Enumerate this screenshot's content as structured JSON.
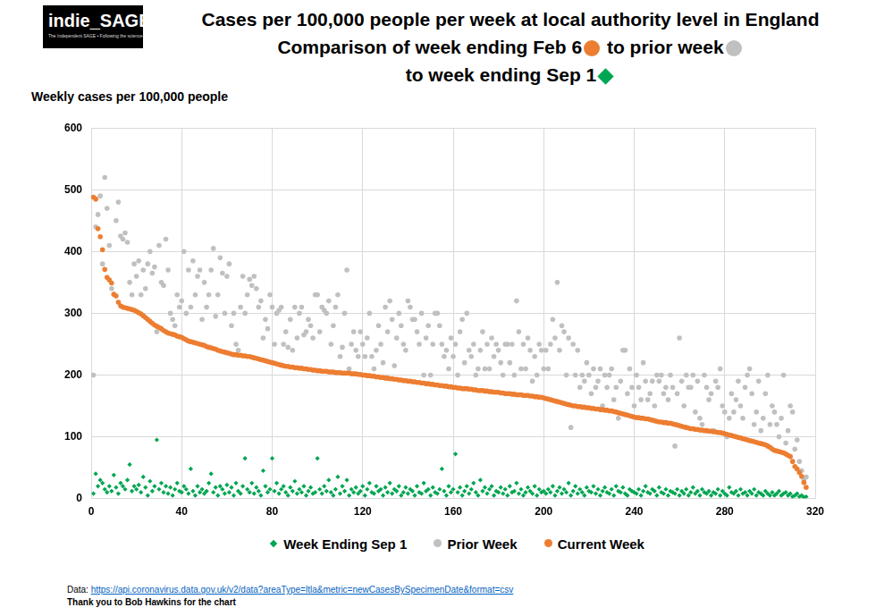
{
  "chart_data": {
    "type": "scatter",
    "title": "Cases per 100,000 people per week at local authority level in England",
    "subtitle": [
      "Comparison of week ending Feb 6",
      "to prior week",
      "to week ending Sep 1"
    ],
    "y_label": "Weekly cases per 100,000 people",
    "logo": {
      "text": "indie_SAGE",
      "tagline": "The Independent SAGE • Following the science"
    },
    "source": "Data:",
    "source_url": "https://api.coronavirus.data.gov.uk/v2/data?areaType=ltla&metric=newCasesBySpecimenDate&format=csv",
    "credit": "Thank you to Bob Hawkins for the chart",
    "xlim": [
      0,
      320
    ],
    "xticks": [
      0,
      40,
      80,
      120,
      160,
      200,
      240,
      280,
      320
    ],
    "ylim": [
      0,
      600
    ],
    "yticks": [
      0,
      100,
      200,
      300,
      400,
      500,
      600
    ],
    "grid": true,
    "legend": "bottom",
    "x": [
      1,
      2,
      3,
      4,
      5,
      6,
      7,
      8,
      9,
      10,
      11,
      12,
      13,
      14,
      15,
      16,
      17,
      18,
      19,
      20,
      21,
      22,
      23,
      24,
      25,
      26,
      27,
      28,
      29,
      30,
      31,
      32,
      33,
      34,
      35,
      36,
      37,
      38,
      39,
      40,
      41,
      42,
      43,
      44,
      45,
      46,
      47,
      48,
      49,
      50,
      51,
      52,
      53,
      54,
      55,
      56,
      57,
      58,
      59,
      60,
      61,
      62,
      63,
      64,
      65,
      66,
      67,
      68,
      69,
      70,
      71,
      72,
      73,
      74,
      75,
      76,
      77,
      78,
      79,
      80,
      81,
      82,
      83,
      84,
      85,
      86,
      87,
      88,
      89,
      90,
      91,
      92,
      93,
      94,
      95,
      96,
      97,
      98,
      99,
      100,
      101,
      102,
      103,
      104,
      105,
      106,
      107,
      108,
      109,
      110,
      111,
      112,
      113,
      114,
      115,
      116,
      117,
      118,
      119,
      120,
      121,
      122,
      123,
      124,
      125,
      126,
      127,
      128,
      129,
      130,
      131,
      132,
      133,
      134,
      135,
      136,
      137,
      138,
      139,
      140,
      141,
      142,
      143,
      144,
      145,
      146,
      147,
      148,
      149,
      150,
      151,
      152,
      153,
      154,
      155,
      156,
      157,
      158,
      159,
      160,
      161,
      162,
      163,
      164,
      165,
      166,
      167,
      168,
      169,
      170,
      171,
      172,
      173,
      174,
      175,
      176,
      177,
      178,
      179,
      180,
      181,
      182,
      183,
      184,
      185,
      186,
      187,
      188,
      189,
      190,
      191,
      192,
      193,
      194,
      195,
      196,
      197,
      198,
      199,
      200,
      201,
      202,
      203,
      204,
      205,
      206,
      207,
      208,
      209,
      210,
      211,
      212,
      213,
      214,
      215,
      216,
      217,
      218,
      219,
      220,
      221,
      222,
      223,
      224,
      225,
      226,
      227,
      228,
      229,
      230,
      231,
      232,
      233,
      234,
      235,
      236,
      237,
      238,
      239,
      240,
      241,
      242,
      243,
      244,
      245,
      246,
      247,
      248,
      249,
      250,
      251,
      252,
      253,
      254,
      255,
      256,
      257,
      258,
      259,
      260,
      261,
      262,
      263,
      264,
      265,
      266,
      267,
      268,
      269,
      270,
      271,
      272,
      273,
      274,
      275,
      276,
      277,
      278,
      279,
      280,
      281,
      282,
      283,
      284,
      285,
      286,
      287,
      288,
      289,
      290,
      291,
      292,
      293,
      294,
      295,
      296,
      297,
      298,
      299,
      300,
      301,
      302,
      303,
      304,
      305,
      306,
      307,
      308,
      309,
      310,
      311,
      312,
      313,
      314,
      315,
      316
    ],
    "series": [
      {
        "name": "Week Ending Sep 1",
        "color": "#00a651",
        "marker": "diamond",
        "values": [
          8,
          40,
          20,
          30,
          25,
          15,
          10,
          20,
          12,
          38,
          18,
          8,
          25,
          20,
          15,
          30,
          55,
          12,
          20,
          15,
          22,
          10,
          35,
          18,
          5,
          28,
          12,
          20,
          95,
          15,
          25,
          10,
          20,
          8,
          18,
          5,
          15,
          25,
          12,
          10,
          20,
          15,
          8,
          48,
          12,
          5,
          20,
          10,
          15,
          8,
          12,
          25,
          40,
          10,
          18,
          5,
          20,
          15,
          8,
          22,
          10,
          18,
          5,
          25,
          12,
          8,
          20,
          65,
          15,
          10,
          25,
          8,
          18,
          12,
          5,
          45,
          20,
          10,
          15,
          65,
          12,
          25,
          8,
          15,
          20,
          10,
          5,
          18,
          12,
          28,
          8,
          15,
          10,
          20,
          5,
          12,
          18,
          8,
          10,
          65,
          15,
          8,
          20,
          12,
          30,
          10,
          5,
          15,
          35,
          8,
          20,
          12,
          30,
          5,
          15,
          10,
          18,
          8,
          12,
          20,
          5,
          15,
          25,
          10,
          8,
          20,
          12,
          15,
          5,
          18,
          10,
          25,
          8,
          15,
          12,
          20,
          5,
          10,
          18,
          8,
          15,
          12,
          5,
          20,
          10,
          8,
          25,
          12,
          15,
          5,
          18,
          10,
          8,
          15,
          48,
          12,
          5,
          20,
          10,
          15,
          72,
          10,
          18,
          5,
          12,
          20,
          8,
          15,
          25,
          10,
          5,
          30,
          12,
          18,
          8,
          15,
          20,
          5,
          12,
          10,
          18,
          8,
          15,
          5,
          20,
          10,
          12,
          25,
          8,
          15,
          5,
          10,
          18,
          12,
          8,
          20,
          5,
          15,
          10,
          12,
          8,
          15,
          10,
          20,
          5,
          12,
          18,
          8,
          15,
          10,
          25,
          5,
          12,
          20,
          8,
          15,
          10,
          5,
          18,
          12,
          10,
          20,
          8,
          15,
          5,
          12,
          18,
          10,
          8,
          15,
          5,
          20,
          12,
          10,
          18,
          8,
          5,
          15,
          12,
          10,
          8,
          15,
          5,
          12,
          20,
          10,
          8,
          15,
          12,
          5,
          18,
          10,
          8,
          15,
          5,
          12,
          10,
          8,
          15,
          5,
          12,
          8,
          15,
          5,
          10,
          18,
          8,
          12,
          5,
          15,
          10,
          8,
          12,
          5,
          10,
          8,
          15,
          5,
          12,
          8,
          5,
          18,
          10,
          8,
          12,
          5,
          15,
          8,
          10,
          5,
          12,
          8,
          15,
          5,
          10,
          8,
          5,
          12,
          8,
          5,
          10,
          5,
          8,
          12,
          5,
          8,
          10,
          5,
          8,
          3,
          5,
          8,
          3,
          5,
          2,
          3
        ]
      },
      {
        "name": "Prior Week",
        "color": "#c0c0c0",
        "marker": "circle",
        "values": [
          200,
          440,
          460,
          490,
          380,
          520,
          470,
          410,
          340,
          330,
          450,
          480,
          425,
          420,
          430,
          415,
          350,
          330,
          380,
          360,
          385,
          330,
          370,
          340,
          380,
          400,
          365,
          375,
          270,
          410,
          350,
          345,
          420,
          370,
          300,
          290,
          280,
          330,
          310,
          320,
          400,
          300,
          370,
          310,
          385,
          330,
          360,
          370,
          290,
          350,
          310,
          330,
          370,
          405,
          295,
          330,
          390,
          365,
          300,
          360,
          380,
          280,
          300,
          250,
          240,
          310,
          360,
          300,
          330,
          355,
          345,
          360,
          340,
          310,
          320,
          260,
          290,
          275,
          330,
          310,
          250,
          300,
          305,
          310,
          250,
          270,
          245,
          290,
          240,
          310,
          260,
          300,
          310,
          265,
          270,
          290,
          280,
          260,
          330,
          330,
          270,
          310,
          305,
          300,
          320,
          250,
          280,
          310,
          330,
          230,
          245,
          300,
          370,
          210,
          250,
          270,
          240,
          230,
          270,
          250,
          230,
          260,
          300,
          230,
          210,
          240,
          280,
          250,
          220,
          310,
          270,
          320,
          290,
          215,
          260,
          300,
          280,
          250,
          240,
          320,
          310,
          290,
          290,
          270,
          250,
          300,
          200,
          260,
          280,
          200,
          250,
          300,
          300,
          280,
          250,
          230,
          240,
          210,
          260,
          230,
          250,
          200,
          270,
          290,
          220,
          300,
          240,
          230,
          250,
          200,
          210,
          240,
          270,
          210,
          250,
          210,
          260,
          230,
          250,
          240,
          220,
          200,
          250,
          250,
          220,
          250,
          200,
          320,
          270,
          210,
          250,
          210,
          260,
          240,
          190,
          230,
          200,
          250,
          240,
          210,
          240,
          210,
          250,
          290,
          260,
          350,
          240,
          280,
          270,
          200,
          260,
          115,
          250,
          200,
          240,
          180,
          200,
          190,
          220,
          200,
          170,
          210,
          180,
          190,
          210,
          150,
          200,
          180,
          200,
          210,
          160,
          180,
          130,
          190,
          240,
          240,
          170,
          210,
          180,
          150,
          200,
          180,
          160,
          220,
          190,
          160,
          170,
          190,
          150,
          200,
          190,
          200,
          170,
          180,
          160,
          200,
          180,
          85,
          170,
          260,
          190,
          150,
          200,
          180,
          180,
          200,
          140,
          190,
          130,
          120,
          200,
          180,
          160,
          170,
          110,
          190,
          180,
          210,
          150,
          140,
          100,
          130,
          170,
          140,
          160,
          190,
          150,
          130,
          180,
          200,
          210,
          170,
          120,
          140,
          190,
          110,
          130,
          170,
          200,
          120,
          150,
          140,
          120,
          100,
          130,
          200,
          90,
          110,
          150,
          140,
          80,
          95,
          60,
          45,
          30,
          35
        ]
      },
      {
        "name": "Current Week",
        "color": "#ed7d31",
        "marker": "circle",
        "values": [
          488,
          485,
          437,
          424,
          403,
          371,
          358,
          354,
          349,
          331,
          328,
          318,
          312,
          310,
          309,
          308,
          307,
          306,
          305,
          303,
          301,
          299,
          296,
          293,
          290,
          287,
          284,
          281,
          279,
          277,
          275,
          272,
          270,
          268,
          267,
          266,
          265,
          263,
          262,
          261,
          259,
          257,
          255,
          254,
          253,
          252,
          251,
          250,
          249,
          248,
          246,
          245,
          244,
          243,
          242,
          240,
          239,
          238,
          237,
          236,
          235,
          234,
          233,
          233,
          232,
          232,
          231,
          231,
          230,
          230,
          229,
          228,
          227,
          226,
          225,
          224,
          223,
          222,
          221,
          220,
          219,
          218,
          217,
          216,
          215,
          214,
          214,
          213,
          213,
          212,
          212,
          211,
          211,
          210,
          210,
          209,
          209,
          208,
          208,
          207,
          207,
          206,
          206,
          206,
          205,
          205,
          205,
          204,
          204,
          204,
          203,
          203,
          203,
          203,
          202,
          202,
          202,
          201,
          201,
          200,
          200,
          199,
          199,
          198,
          198,
          197,
          197,
          196,
          196,
          195,
          195,
          194,
          194,
          193,
          193,
          192,
          192,
          191,
          191,
          190,
          190,
          189,
          189,
          188,
          188,
          187,
          187,
          186,
          186,
          185,
          185,
          184,
          184,
          183,
          183,
          182,
          182,
          181,
          181,
          180,
          180,
          179,
          179,
          178,
          178,
          178,
          177,
          177,
          176,
          176,
          175,
          175,
          175,
          174,
          174,
          173,
          173,
          172,
          172,
          172,
          171,
          171,
          170,
          170,
          170,
          169,
          169,
          168,
          168,
          168,
          167,
          167,
          167,
          166,
          166,
          165,
          165,
          164,
          164,
          163,
          162,
          161,
          160,
          159,
          158,
          157,
          156,
          155,
          154,
          153,
          152,
          151,
          150,
          150,
          149,
          149,
          148,
          148,
          147,
          147,
          146,
          146,
          145,
          145,
          144,
          144,
          143,
          143,
          142,
          142,
          141,
          140,
          139,
          138,
          137,
          136,
          135,
          134,
          133,
          132,
          131,
          131,
          130,
          130,
          129,
          129,
          128,
          127,
          126,
          125,
          124,
          124,
          123,
          123,
          122,
          122,
          121,
          120,
          119,
          118,
          117,
          116,
          115,
          114,
          113,
          113,
          112,
          112,
          111,
          111,
          110,
          110,
          109,
          109,
          108,
          108,
          107,
          107,
          106,
          105,
          104,
          103,
          102,
          101,
          100,
          99,
          98,
          97,
          96,
          95,
          94,
          93,
          92,
          91,
          90,
          89,
          88,
          87,
          85,
          83,
          80,
          78,
          77,
          76,
          75,
          74,
          72,
          70,
          68,
          60,
          52,
          48,
          42,
          36,
          26,
          18
        ]
      }
    ]
  }
}
